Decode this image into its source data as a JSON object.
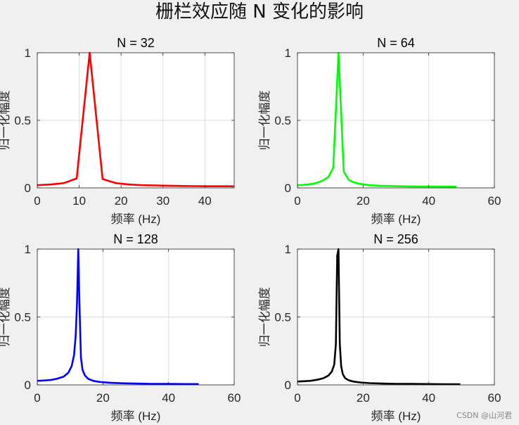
{
  "figure": {
    "suptitle": "栅栏效应随 N 变化的影响",
    "watermark": "CSDN @山河君"
  },
  "chart_data": [
    {
      "type": "line",
      "title": "N = 32",
      "xlabel": "频率 (Hz)",
      "ylabel": "归一化幅度",
      "xlim": [
        0,
        47
      ],
      "ylim": [
        0,
        1
      ],
      "xticks": [
        0,
        10,
        20,
        30,
        40
      ],
      "yticks": [
        0,
        0.5,
        1
      ],
      "grid": true,
      "color": "#ff0000",
      "series": [
        {
          "x": [
            0,
            3.1,
            6.3,
            9.4,
            12.5,
            15.6,
            18.8,
            21.9,
            25,
            28.1,
            31.3,
            34.4,
            37.5,
            40.6,
            43.8,
            46.9
          ],
          "y": [
            0.02,
            0.025,
            0.035,
            0.07,
            1.0,
            0.065,
            0.035,
            0.025,
            0.02,
            0.018,
            0.016,
            0.014,
            0.013,
            0.012,
            0.012,
            0.012
          ]
        }
      ]
    },
    {
      "type": "line",
      "title": "N = 64",
      "xlabel": "频率 (Hz)",
      "ylabel": "归一化幅度",
      "xlim": [
        0,
        60
      ],
      "ylim": [
        0,
        1
      ],
      "xticks": [
        0,
        20,
        40,
        60
      ],
      "yticks": [
        0,
        0.5,
        1
      ],
      "grid": true,
      "color": "#00ff00",
      "series": [
        {
          "x": [
            0,
            1.6,
            3.1,
            4.7,
            6.3,
            7.8,
            9.4,
            10.9,
            12.5,
            14.1,
            15.6,
            17.2,
            18.8,
            20.3,
            21.9,
            23.4,
            25,
            28.1,
            31.3,
            34.4,
            37.5,
            40.6,
            43.8,
            46.9,
            48.4
          ],
          "y": [
            0.02,
            0.022,
            0.025,
            0.03,
            0.04,
            0.055,
            0.08,
            0.15,
            1.0,
            0.12,
            0.06,
            0.04,
            0.03,
            0.025,
            0.02,
            0.018,
            0.016,
            0.014,
            0.012,
            0.011,
            0.01,
            0.01,
            0.009,
            0.009,
            0.009
          ]
        }
      ]
    },
    {
      "type": "line",
      "title": "N = 128",
      "xlabel": "频率 (Hz)",
      "ylabel": "归一化幅度",
      "xlim": [
        0,
        60
      ],
      "ylim": [
        0,
        1
      ],
      "xticks": [
        0,
        20,
        40,
        60
      ],
      "yticks": [
        0,
        0.5,
        1
      ],
      "grid": true,
      "color": "#0000ff",
      "series": [
        {
          "x": [
            0,
            2,
            4,
            6,
            8,
            9.5,
            10.5,
            11.2,
            11.7,
            12.1,
            12.5,
            12.9,
            13.3,
            13.8,
            14.5,
            15.5,
            17,
            19,
            22,
            26,
            30,
            35,
            40,
            45,
            49.2
          ],
          "y": [
            0.03,
            0.032,
            0.036,
            0.045,
            0.06,
            0.09,
            0.14,
            0.22,
            0.36,
            0.6,
            1.0,
            0.55,
            0.2,
            0.11,
            0.07,
            0.045,
            0.03,
            0.022,
            0.016,
            0.012,
            0.01,
            0.008,
            0.007,
            0.006,
            0.006
          ]
        }
      ]
    },
    {
      "type": "line",
      "title": "N = 256",
      "xlabel": "频率 (Hz)",
      "ylabel": "归一化幅度",
      "xlim": [
        0,
        60
      ],
      "ylim": [
        0,
        1
      ],
      "xticks": [
        0,
        20,
        40,
        60
      ],
      "yticks": [
        0,
        0.5,
        1
      ],
      "grid": true,
      "color": "#000000",
      "series": [
        {
          "x": [
            0,
            2,
            4,
            6,
            8,
            9.5,
            10.5,
            11.2,
            11.7,
            12.1,
            12.5,
            12.9,
            13.3,
            13.8,
            14.5,
            15.5,
            17,
            19,
            22,
            26,
            30,
            35,
            40,
            45,
            49.6
          ],
          "y": [
            0.025,
            0.027,
            0.03,
            0.038,
            0.05,
            0.07,
            0.1,
            0.15,
            0.3,
            0.95,
            1.0,
            0.3,
            0.14,
            0.08,
            0.05,
            0.035,
            0.025,
            0.018,
            0.013,
            0.01,
            0.008,
            0.007,
            0.006,
            0.005,
            0.005
          ]
        }
      ]
    }
  ]
}
